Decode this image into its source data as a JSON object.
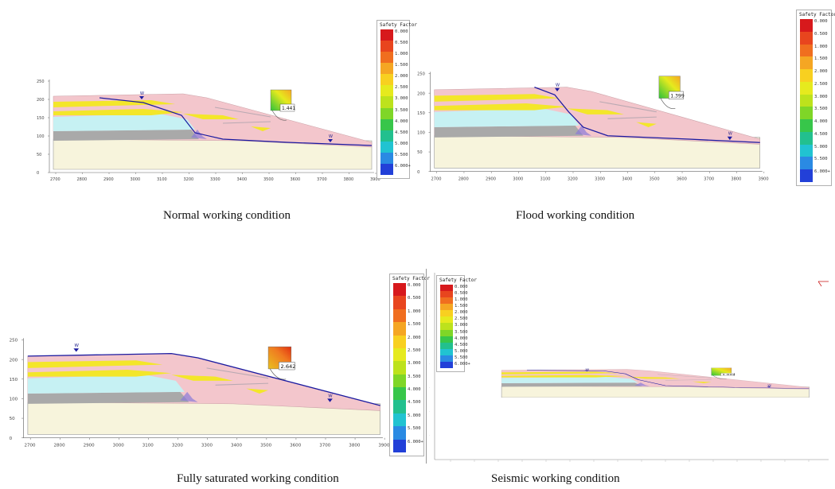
{
  "captions": {
    "normal": "Normal working condition",
    "flood": "Flood working condition",
    "saturated": "Fully saturated working condition",
    "seismic": "Seismic working condition"
  },
  "legend": {
    "title": "Safety Factor",
    "labels": [
      "0.000",
      "0.500",
      "1.000",
      "1.500",
      "2.000",
      "2.500",
      "3.000",
      "3.500",
      "4.000",
      "4.500",
      "5.000",
      "5.500",
      "6.000+"
    ],
    "colors": [
      "#d7191c",
      "#e8451e",
      "#f06e1f",
      "#f5a623",
      "#f8d020",
      "#e6ea1e",
      "#bde21c",
      "#7fd627",
      "#37c64a",
      "#22c08e",
      "#21c3d1",
      "#2a8ae3",
      "#2240d8"
    ]
  },
  "axes": {
    "y_ticks": [
      "250",
      "200",
      "150",
      "100",
      "50",
      "0"
    ],
    "x_ticks": [
      "2700",
      "2800",
      "2900",
      "3000",
      "3100",
      "3200",
      "3300",
      "3400",
      "3500",
      "3600",
      "3700",
      "3800",
      "3900"
    ]
  },
  "water_marker": "W",
  "safety_factors": {
    "normal": "1.441",
    "flood": "1.399",
    "saturated": "2.642",
    "seismic": "1.002"
  },
  "colors": {
    "slope_fill": "#f3c6cc",
    "base_fill": "#f7f4dc",
    "water_fill": "#c6f1f3",
    "grey_layer": "#a9a9a9",
    "yellow_layer": "#f3e62a",
    "water_line": "#1a1aa0"
  }
}
